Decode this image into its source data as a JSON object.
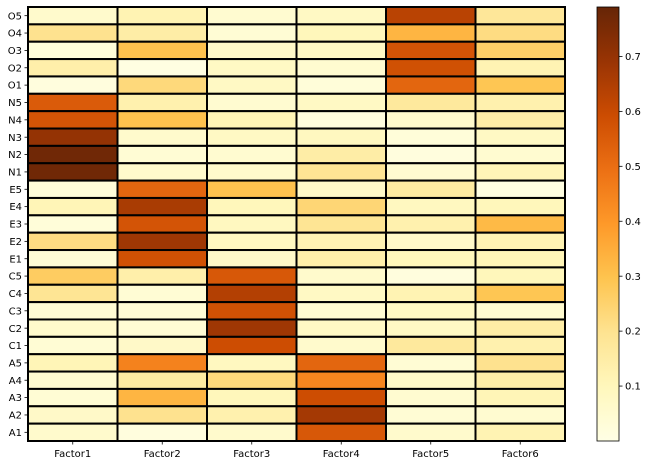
{
  "chart_data": {
    "type": "heatmap",
    "title": "",
    "xlabel": "",
    "ylabel": "",
    "x_categories": [
      "Factor1",
      "Factor2",
      "Factor3",
      "Factor4",
      "Factor5",
      "Factor6"
    ],
    "y_categories": [
      "O5",
      "O4",
      "O3",
      "O2",
      "O1",
      "N5",
      "N4",
      "N3",
      "N2",
      "N1",
      "E5",
      "E4",
      "E3",
      "E2",
      "E1",
      "C5",
      "C4",
      "C3",
      "C2",
      "C1",
      "A5",
      "A4",
      "A3",
      "A2",
      "A1"
    ],
    "values": [
      [
        0.06,
        0.12,
        0.05,
        0.08,
        0.63,
        0.18
      ],
      [
        0.2,
        0.15,
        0.04,
        0.1,
        0.33,
        0.22
      ],
      [
        0.03,
        0.3,
        0.07,
        0.08,
        0.57,
        0.26
      ],
      [
        0.14,
        0.01,
        0.08,
        0.05,
        0.58,
        0.12
      ],
      [
        0.02,
        0.23,
        0.08,
        0.03,
        0.52,
        0.29
      ],
      [
        0.55,
        0.13,
        0.05,
        0.08,
        0.17,
        0.13
      ],
      [
        0.57,
        0.3,
        0.11,
        0.02,
        0.06,
        0.15
      ],
      [
        0.7,
        0.06,
        0.08,
        0.09,
        0.03,
        0.08
      ],
      [
        0.77,
        0.04,
        0.05,
        0.15,
        0.02,
        0.05
      ],
      [
        0.77,
        0.06,
        0.06,
        0.19,
        0.05,
        0.11
      ],
      [
        0.03,
        0.52,
        0.3,
        0.07,
        0.16,
        0.01
      ],
      [
        0.11,
        0.66,
        0.1,
        0.24,
        0.09,
        0.1
      ],
      [
        0.03,
        0.57,
        0.09,
        0.19,
        0.13,
        0.32
      ],
      [
        0.22,
        0.68,
        0.09,
        0.12,
        0.07,
        0.12
      ],
      [
        0.04,
        0.58,
        0.07,
        0.14,
        0.1,
        0.11
      ],
      [
        0.27,
        0.14,
        0.56,
        0.06,
        0.02,
        0.1
      ],
      [
        0.19,
        0.04,
        0.64,
        0.08,
        0.12,
        0.29
      ],
      [
        0.04,
        0.04,
        0.58,
        0.05,
        0.08,
        0.05
      ],
      [
        0.06,
        0.04,
        0.68,
        0.08,
        0.08,
        0.15
      ],
      [
        0.04,
        0.07,
        0.59,
        0.06,
        0.17,
        0.13
      ],
      [
        0.11,
        0.45,
        0.09,
        0.52,
        0.04,
        0.2
      ],
      [
        0.05,
        0.16,
        0.23,
        0.44,
        0.07,
        0.15
      ],
      [
        0.04,
        0.33,
        0.1,
        0.59,
        0.05,
        0.11
      ],
      [
        0.07,
        0.2,
        0.13,
        0.67,
        0.04,
        0.05
      ],
      [
        0.06,
        0.02,
        0.06,
        0.56,
        0.06,
        0.12
      ]
    ],
    "colorbar": {
      "colormap": "YlOrBr",
      "range": [
        0.0,
        0.79
      ],
      "ticks": [
        0.1,
        0.2,
        0.3,
        0.4,
        0.5,
        0.6,
        0.7
      ],
      "tick_labels": [
        "0.1",
        "0.2",
        "0.3",
        "0.4",
        "0.5",
        "0.6",
        "0.7"
      ]
    },
    "cell_border_color": "#000000",
    "grid": false,
    "legend": "none"
  }
}
